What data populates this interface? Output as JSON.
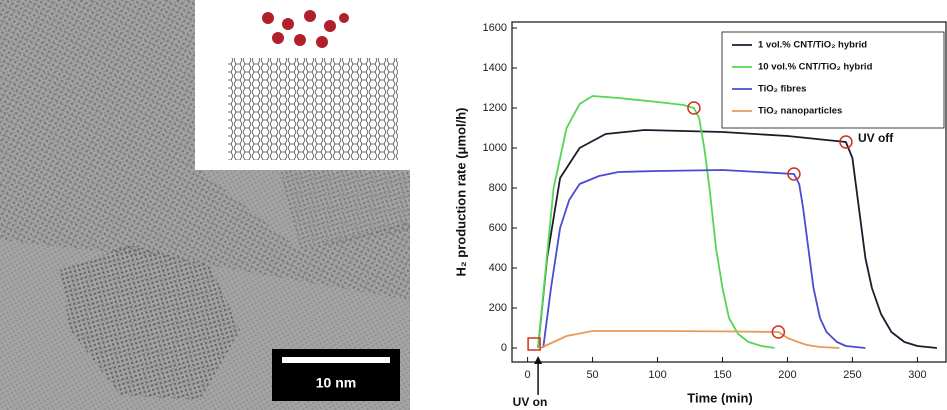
{
  "image": {
    "scale_bar": "10 nm"
  },
  "chart_data": {
    "type": "line",
    "x_label": "Time (min)",
    "y_label": "H₂ production rate (μmol/h)",
    "xlim": [
      -12,
      322
    ],
    "ylim": [
      -70,
      1630
    ],
    "xticks": [
      0,
      50,
      100,
      150,
      200,
      250,
      300
    ],
    "yticks": [
      0,
      200,
      400,
      600,
      800,
      1000,
      1200,
      1400,
      1600
    ],
    "legend": "upper right",
    "series": [
      {
        "name": "1 vol.% CNT/TiO₂ hybrid",
        "color": "#1c1c2c",
        "x": [
          8,
          15,
          25,
          40,
          60,
          90,
          150,
          200,
          245,
          250,
          255,
          260,
          265,
          272,
          280,
          290,
          300,
          315
        ],
        "values": [
          0,
          450,
          850,
          1000,
          1070,
          1090,
          1080,
          1060,
          1030,
          950,
          700,
          450,
          300,
          170,
          80,
          30,
          10,
          0
        ]
      },
      {
        "name": "10 vol.% CNT/TiO₂ hybrid",
        "color": "#55d655",
        "x": [
          8,
          14,
          20,
          30,
          40,
          50,
          70,
          100,
          120,
          128,
          132,
          136,
          140,
          145,
          150,
          155,
          162,
          170,
          180,
          190
        ],
        "values": [
          0,
          400,
          800,
          1100,
          1220,
          1260,
          1250,
          1230,
          1215,
          1200,
          1150,
          1000,
          800,
          500,
          300,
          150,
          70,
          30,
          10,
          0
        ]
      },
      {
        "name": "TiO₂ fibres",
        "color": "#4b4bd0",
        "x": [
          12,
          18,
          25,
          32,
          40,
          55,
          70,
          100,
          150,
          205,
          209,
          212,
          216,
          220,
          225,
          230,
          238,
          245,
          260
        ],
        "values": [
          0,
          300,
          600,
          740,
          820,
          860,
          880,
          885,
          890,
          870,
          820,
          700,
          500,
          300,
          150,
          80,
          30,
          10,
          0
        ]
      },
      {
        "name": "TiO₂ nanoparticles",
        "color": "#e79a5a",
        "x": [
          10,
          20,
          30,
          50,
          100,
          150,
          193,
          200,
          208,
          215,
          225,
          240
        ],
        "values": [
          0,
          30,
          60,
          85,
          85,
          83,
          80,
          50,
          30,
          15,
          5,
          0
        ]
      }
    ],
    "markers": [
      {
        "x": 128,
        "y": 1200
      },
      {
        "x": 245,
        "y": 1030
      },
      {
        "x": 205,
        "y": 870
      },
      {
        "x": 193,
        "y": 80
      }
    ],
    "uv_on_marker": {
      "x": 5,
      "y": 20
    },
    "annotations": [
      "UV off",
      "UV on"
    ]
  }
}
